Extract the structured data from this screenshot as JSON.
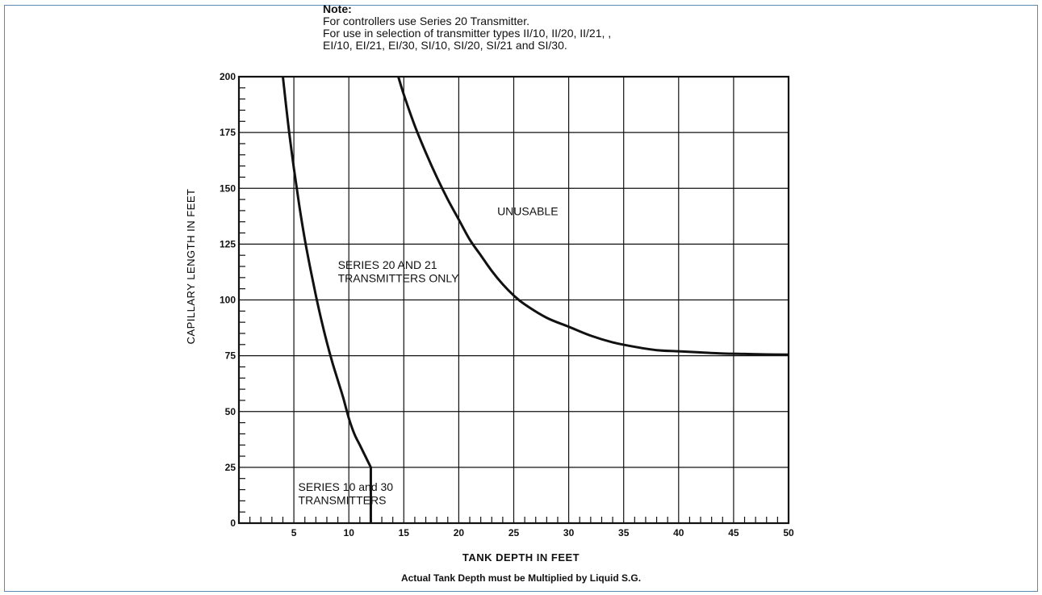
{
  "note": {
    "title": "Note:",
    "lines": [
      "For controllers use Series 20 Transmitter.",
      "For use in selection of transmitter types II/10, II/20, II/21, ,",
      "EI/10, EI/21, EI/30, SI/10, SI/20, SI/21 and SI/30."
    ]
  },
  "footer": {
    "subcaption": "Actual Tank Depth must be Multiplied by Liquid S.G."
  },
  "chart_data": {
    "type": "line",
    "title": "",
    "xlabel": "TANK DEPTH IN FEET",
    "ylabel": "CAPILLARY LENGTH IN FEET",
    "xlim": [
      0,
      50
    ],
    "ylim": [
      0,
      200
    ],
    "x_ticks": [
      5,
      10,
      15,
      20,
      25,
      30,
      35,
      40,
      45,
      50
    ],
    "y_ticks": [
      0,
      25,
      50,
      75,
      100,
      125,
      150,
      175,
      200
    ],
    "grid": true,
    "series": [
      {
        "name": "",
        "x": [
          4.0,
          4.5,
          5.0,
          5.5,
          6.0,
          6.5,
          7.0,
          7.5,
          8.0,
          8.5,
          9.0,
          9.5,
          10.0,
          10.5,
          11.0,
          11.5,
          12.0,
          12.0
        ],
        "y": [
          200,
          178,
          159,
          142,
          127,
          114,
          102,
          91,
          81,
          72,
          64,
          56,
          47,
          40,
          35,
          30,
          25,
          0
        ]
      },
      {
        "name": "",
        "x": [
          14.5,
          15.0,
          16.0,
          17.0,
          18.0,
          19.0,
          20.0,
          21.0,
          22.0,
          23.0,
          24.0,
          25.0,
          26.0,
          28.0,
          30.0,
          32.0,
          34.0,
          36.0,
          38.0,
          40.0,
          42.0,
          44.0,
          46.0,
          48.0,
          50.0
        ],
        "y": [
          200,
          192,
          178,
          166,
          155,
          145,
          136,
          127,
          120,
          113,
          107,
          102,
          98,
          92,
          88,
          84,
          81,
          79,
          77.5,
          77,
          76.5,
          76,
          75.8,
          75.6,
          75.5
        ]
      }
    ],
    "annotations": [
      {
        "text": "UNUSABLE",
        "x": 23.5,
        "y": 138
      },
      {
        "text": "SERIES 20 AND 21",
        "x": 9.0,
        "y": 114
      },
      {
        "text": "TRANSMITTERS ONLY",
        "x": 9.0,
        "y": 108
      },
      {
        "text": "SERIES 10 and 30",
        "x": 5.4,
        "y": 14.5
      },
      {
        "text": "TRANSMITTERS",
        "x": 5.4,
        "y": 8.5
      }
    ]
  }
}
